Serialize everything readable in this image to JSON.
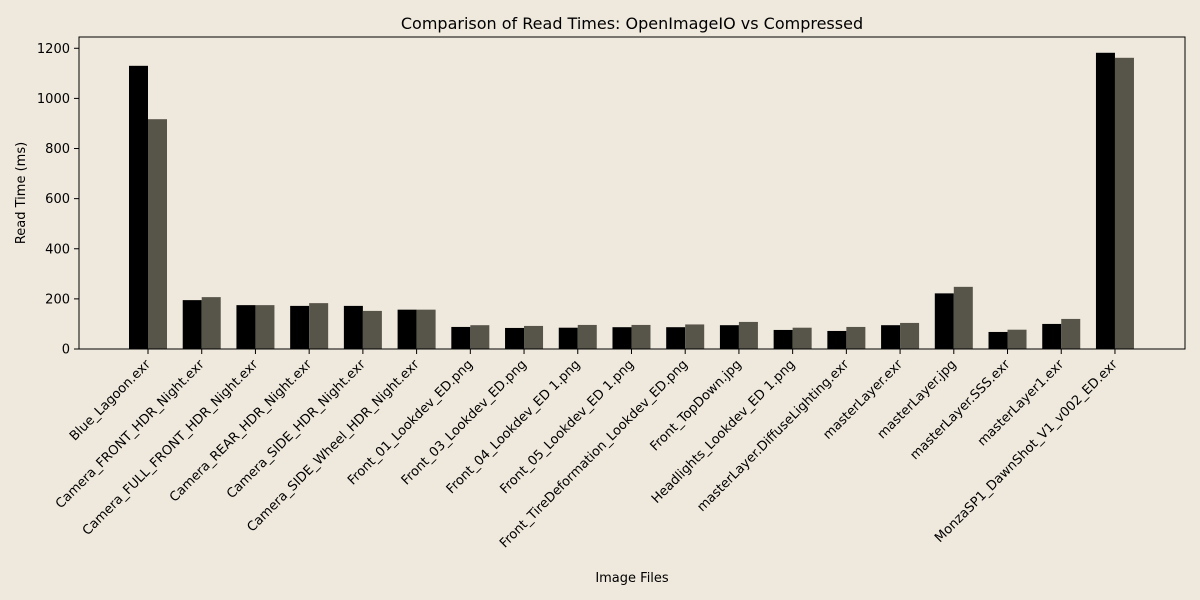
{
  "chart_data": {
    "type": "bar",
    "title": "Comparison of Read Times: OpenImageIO vs Compressed",
    "xlabel": "Image Files",
    "ylabel": "Read Time (ms)",
    "ylim": [
      0,
      1245
    ],
    "yticks": [
      0,
      200,
      400,
      600,
      800,
      1000,
      1200
    ],
    "grid": false,
    "categories": [
      "Blue_Lagoon.exr",
      "Camera_FRONT_HDR_Night.exr",
      "Camera_FULL_FRONT_HDR_Night.exr",
      "Camera_REAR_HDR_Night.exr",
      "Camera_SIDE_HDR_Night.exr",
      "Camera_SIDE_Wheel_HDR_Night.exr",
      "Front_01_Lookdev_ED.png",
      "Front_03_Lookdev_ED.png",
      "Front_04_Lookdev_ED 1.png",
      "Front_05_Lookdev_ED 1.png",
      "Front_TireDeformation_Lookdev_ED.png",
      "Front_TopDown.jpg",
      "Headlights_Lookdev_ED 1.png",
      "masterLayer.DiffuseLighting.exr",
      "masterLayer.exr",
      "masterLayer.jpg",
      "masterLayer.SSS.exr",
      "masterLayer1.exr",
      "MonzaSP1_DawnShot_V1_v002_ED.exr"
    ],
    "series": [
      {
        "color": "#000000",
        "values": [
          1130,
          195,
          175,
          172,
          172,
          157,
          88,
          84,
          85,
          87,
          87,
          95,
          76,
          72,
          95,
          222,
          68,
          100,
          1182
        ]
      },
      {
        "color": "#57544a",
        "values": [
          917,
          207,
          175,
          183,
          152,
          157,
          95,
          92,
          96,
          96,
          98,
          108,
          85,
          88,
          104,
          248,
          77,
          120,
          1162
        ]
      }
    ]
  }
}
